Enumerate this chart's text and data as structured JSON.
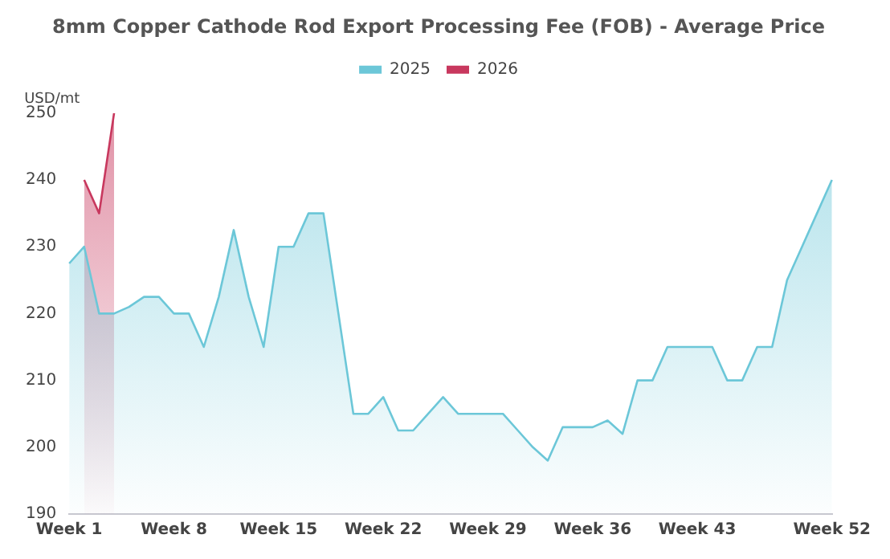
{
  "chart_data": {
    "type": "area",
    "title": "8mm Copper Cathode Rod Export Processing Fee (FOB) - Average Price",
    "ylabel": "USD/mt",
    "categories": [
      "Week 1",
      null,
      null,
      null,
      null,
      null,
      null,
      "Week 8",
      null,
      null,
      null,
      null,
      null,
      null,
      "Week 15",
      null,
      null,
      null,
      null,
      null,
      null,
      "Week 22",
      null,
      null,
      null,
      null,
      null,
      null,
      "Week 29",
      null,
      null,
      null,
      null,
      null,
      null,
      "Week 36",
      null,
      null,
      null,
      null,
      null,
      null,
      "Week 43",
      null,
      null,
      null,
      null,
      null,
      null,
      null,
      null,
      "Week 52"
    ],
    "series": [
      {
        "name": "2025",
        "color": "#6cc7d8",
        "values": [
          227.5,
          230,
          220,
          220,
          221,
          222.5,
          222.5,
          220,
          220,
          215,
          222.5,
          232.5,
          222.5,
          215,
          230,
          230,
          235,
          235,
          220,
          205,
          205,
          207.5,
          202.5,
          202.5,
          205,
          207.5,
          205,
          205,
          205,
          205,
          202.5,
          200,
          198,
          203,
          203,
          203,
          204,
          202,
          210,
          210,
          215,
          215,
          215,
          215,
          210,
          210,
          215,
          215,
          225,
          230,
          235,
          240
        ]
      },
      {
        "name": "2026",
        "color": "#c8385e",
        "values": [
          null,
          240,
          235,
          250,
          null,
          null,
          null,
          null,
          null,
          null,
          null,
          null,
          null,
          null,
          null,
          null,
          null,
          null,
          null,
          null,
          null,
          null,
          null,
          null,
          null,
          null,
          null,
          null,
          null,
          null,
          null,
          null,
          null,
          null,
          null,
          null,
          null,
          null,
          null,
          null,
          null,
          null,
          null,
          null,
          null,
          null,
          null,
          null,
          null,
          null,
          null,
          null
        ]
      }
    ],
    "ylim": [
      190,
      250
    ],
    "yticks": [
      190,
      200,
      210,
      220,
      230,
      240,
      250
    ],
    "grid": false,
    "legend": "top"
  }
}
